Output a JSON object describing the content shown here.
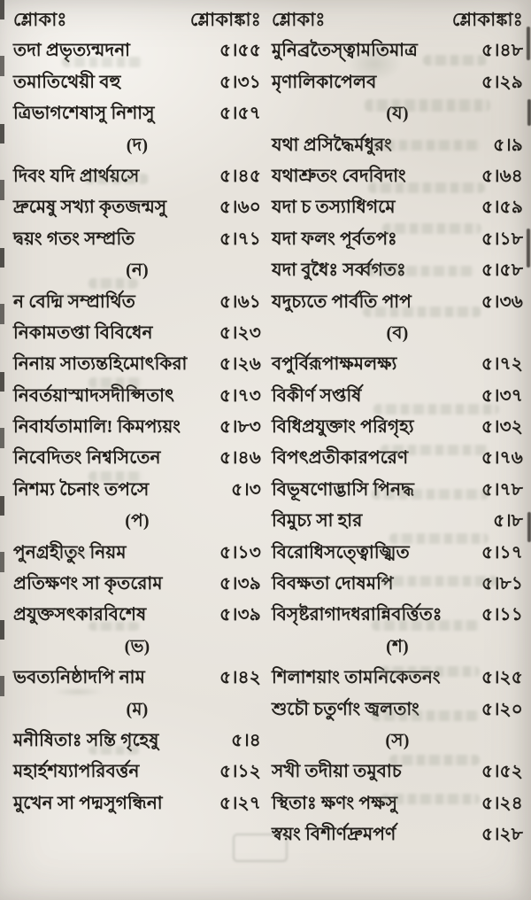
{
  "paper_color": "#e7e3dc",
  "ink_color": "#221f1b",
  "columns": [
    {
      "header": {
        "title": "শ্লোকাঃ",
        "number_title": "শ্লোকাঙ্কাঃ"
      },
      "rows": [
        {
          "type": "entry",
          "text": "তদা প্রভৃত্যন্মদনা",
          "num": "৫।৫৫"
        },
        {
          "type": "entry",
          "text": "তমাতিথেয়ী বহু",
          "num": "৫।৩১"
        },
        {
          "type": "entry",
          "text": "ত্রিভাগশেষাসু নিশাসু",
          "num": "৫।৫৭"
        },
        {
          "type": "section",
          "label": "(দ)"
        },
        {
          "type": "entry",
          "text": "দিবং যদি প্রার্থয়সে",
          "num": "৫।৪৫"
        },
        {
          "type": "entry",
          "text": "দ্রুমেষু সখ্যা কৃতজন্মসু",
          "num": "৫।৬০"
        },
        {
          "type": "entry",
          "text": "দ্বয়ং গতং সম্প্রতি",
          "num": "৫।৭১"
        },
        {
          "type": "section",
          "label": "(ন)"
        },
        {
          "type": "entry",
          "text": "ন বেদ্মি সম্প্রার্থিত",
          "num": "৫।৬১"
        },
        {
          "type": "entry",
          "text": "নিকামতপ্তা বিবিধেন",
          "num": "৫।২৩"
        },
        {
          "type": "entry",
          "text": "নিনায় সাত্যন্তহিমোৎকিরা",
          "num": "৫।২৬"
        },
        {
          "type": "entry",
          "text": "নিবর্তয়াস্মাদসদীপ্সিতাৎ",
          "num": "৫।৭৩"
        },
        {
          "type": "entry",
          "text": "নিবার্যতামালি! কিমপ্যয়ং",
          "num": "৫।৮৩"
        },
        {
          "type": "entry",
          "text": "নিবেদিতং নিশ্বসিতেন",
          "num": "৫।৪৬"
        },
        {
          "type": "entry",
          "text": "নিশম্য চৈনাং তপসে",
          "num": "৫।৩"
        },
        {
          "type": "section",
          "label": "(প)"
        },
        {
          "type": "entry",
          "text": "পুনগ্রহীতুং নিয়ম",
          "num": "৫।১৩"
        },
        {
          "type": "entry",
          "text": "প্রতিক্ষণং সা কৃতরোম",
          "num": "৫।৩৯"
        },
        {
          "type": "entry",
          "text": "প্রযুক্তসৎকারবিশেষ",
          "num": "৫।৩৯"
        },
        {
          "type": "section",
          "label": "(ভ)"
        },
        {
          "type": "entry",
          "text": "ভবত্যনিষ্ঠাদপি নাম",
          "num": "৫।৪২"
        },
        {
          "type": "section",
          "label": "(ম)"
        },
        {
          "type": "entry",
          "text": "মনীষিতাঃ সন্তি গৃহেষু",
          "num": "৫।৪"
        },
        {
          "type": "entry",
          "text": "মহার্হশয্যাপরিবর্ত্তন",
          "num": "৫।১২"
        },
        {
          "type": "entry",
          "text": "মুখেন সা পদ্মসুগন্ধিনা",
          "num": "৫।২৭"
        }
      ]
    },
    {
      "header": {
        "title": "শ্লোকাঃ",
        "number_title": "শ্লোকাঙ্কাঃ"
      },
      "rows": [
        {
          "type": "entry",
          "text": "মুনিব্রতৈস্ত্বামতিমাত্র",
          "num": "৫।৪৮"
        },
        {
          "type": "entry",
          "text": "মৃণালিকাপেলব",
          "num": "৫।২৯"
        },
        {
          "type": "section",
          "label": "(য)"
        },
        {
          "type": "entry",
          "text": "যথা প্রসিদ্ধৈর্মধুরং",
          "num": "৫।৯"
        },
        {
          "type": "entry",
          "text": "যথাশ্রুতং বেদবিদাং",
          "num": "৫।৬৪"
        },
        {
          "type": "entry",
          "text": "যদা চ তস্যাধিগমে",
          "num": "৫।৫৯"
        },
        {
          "type": "entry",
          "text": "যদা ফলং পূর্বতপঃ",
          "num": "৫।১৮"
        },
        {
          "type": "entry",
          "text": "যদা বুধৈঃ সর্ব্বগতঃ",
          "num": "৫।৫৮"
        },
        {
          "type": "entry",
          "text": "যদুচ্যতে পার্বতি পাপ",
          "num": "৫।৩৬"
        },
        {
          "type": "section",
          "label": "(ব)"
        },
        {
          "type": "entry",
          "text": "বপুর্বিরূপাক্ষমলক্ষ্য",
          "num": "৫।৭২"
        },
        {
          "type": "entry",
          "text": "বিকীর্ণ সপ্তর্ষি",
          "num": "৫।৩৭"
        },
        {
          "type": "entry",
          "text": "বিধিপ্রযুক্তাং পরিগৃহ্য",
          "num": "৫।৩২"
        },
        {
          "type": "entry",
          "text": "বিপৎপ্রতীকারপরেণ",
          "num": "৫।৭৬"
        },
        {
          "type": "entry",
          "text": "বিভূষণোদ্ভাসি পিনদ্ধ",
          "num": "৫।৭৮"
        },
        {
          "type": "entry",
          "text": "বিমুচ্য সা হার",
          "num": "৫।৮"
        },
        {
          "type": "entry",
          "text": "বিরোধিসত্ত্বোজ্ঝিত",
          "num": "৫।১৭"
        },
        {
          "type": "entry",
          "text": "বিবক্ষতা দোষমপি",
          "num": "৫।৮১"
        },
        {
          "type": "entry",
          "text": "বিসৃষ্টরাগাদধরান্নিবর্ত্তিতঃ",
          "num": "৫।১১"
        },
        {
          "type": "section",
          "label": "(শ)"
        },
        {
          "type": "entry",
          "text": "শিলাশয়াং তামনিকেতনং",
          "num": "৫।২৫"
        },
        {
          "type": "entry",
          "text": "শুচৌ চতুর্ণাং জ্বলতাং",
          "num": "৫।২০"
        },
        {
          "type": "section",
          "label": "(স)"
        },
        {
          "type": "entry",
          "text": "সখী তদীয়া তমুবাচ",
          "num": "৫।৫২"
        },
        {
          "type": "entry",
          "text": "স্থিতাঃ ক্ষণং পক্ষসু",
          "num": "৫।২৪"
        },
        {
          "type": "entry",
          "text": "স্বয়ং বিশীর্ণদ্রুমপর্ণ",
          "num": "৫।২৮"
        }
      ]
    }
  ]
}
